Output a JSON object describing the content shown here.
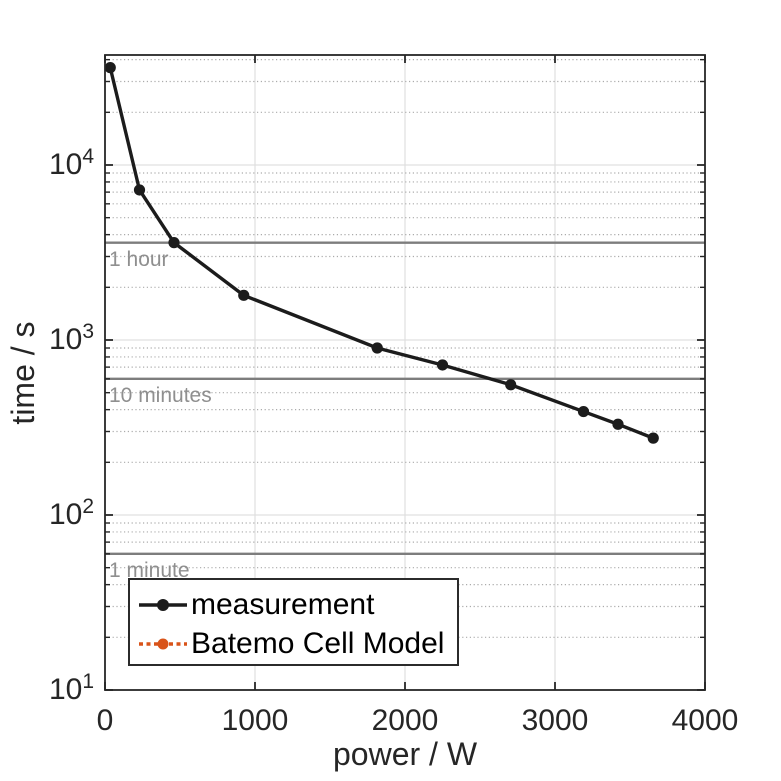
{
  "chart_data": {
    "type": "line",
    "title": "",
    "xlabel": "power / W",
    "ylabel": "time / s",
    "x_axis": {
      "scale": "linear",
      "min": 0,
      "max": 4000,
      "ticks": [
        0,
        1000,
        2000,
        3000,
        4000
      ]
    },
    "y_axis": {
      "scale": "log",
      "min": 10,
      "max": 42500,
      "ticks": [
        10,
        100,
        1000,
        10000
      ],
      "tick_exponents": [
        1,
        2,
        3,
        4
      ],
      "minor_grid": true
    },
    "series": [
      {
        "name": "measurement",
        "color": "#1c1c1c",
        "line_style": "solid",
        "marker": "circle",
        "points": [
          [
            35,
            36000
          ],
          [
            230,
            7200
          ],
          [
            460,
            3600
          ],
          [
            925,
            1800
          ],
          [
            1815,
            900
          ],
          [
            2250,
            720
          ],
          [
            2705,
            555
          ],
          [
            3190,
            390
          ],
          [
            3420,
            330
          ],
          [
            3655,
            275
          ]
        ]
      },
      {
        "name": "Batemo Cell Model",
        "color": "#d95319",
        "line_style": "dotted",
        "marker": "circle",
        "points": []
      }
    ],
    "reference_lines": [
      {
        "label": "1 hour",
        "time_s": 3600
      },
      {
        "label": "10 minutes",
        "time_s": 600
      },
      {
        "label": "1 minute",
        "time_s": 60
      }
    ],
    "legend": {
      "position": "southwest",
      "entries": [
        "measurement",
        "Batemo Cell Model"
      ]
    },
    "grid": true,
    "colors": {
      "major_grid": "#e0e0e0",
      "minor_grid": "#ababab",
      "reference_line": "#7d7d7d",
      "reference_label": "#8f8f8f",
      "axes": "#262626"
    }
  }
}
